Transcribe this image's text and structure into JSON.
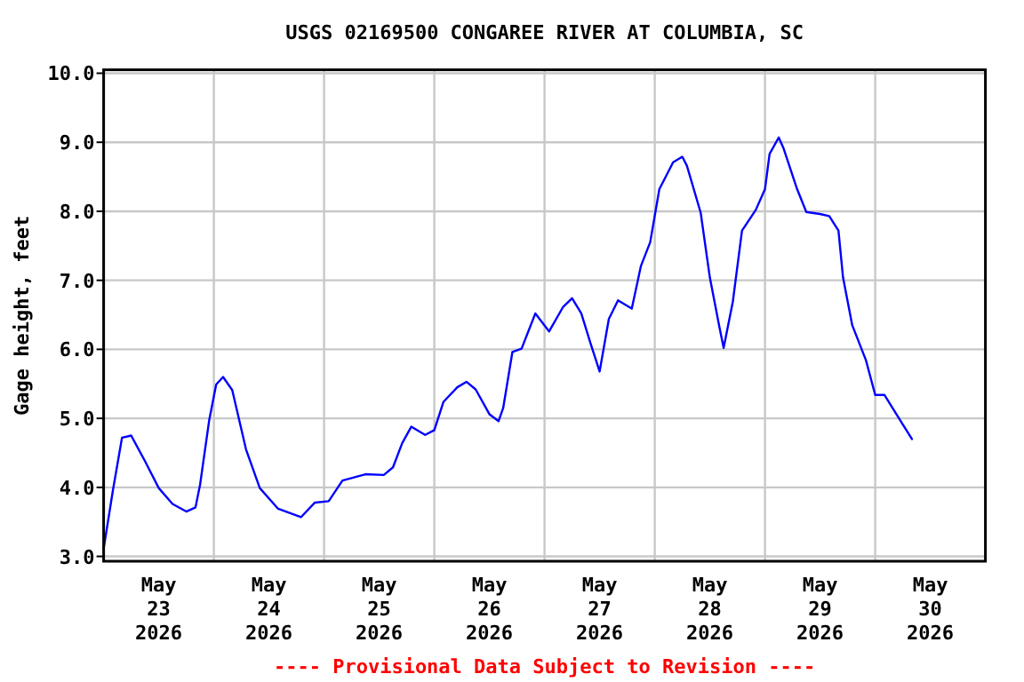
{
  "chart_data": {
    "type": "line",
    "title": "USGS 02169500 CONGAREE RIVER AT COLUMBIA, SC",
    "ylabel": "Gage height, feet",
    "annotations": [
      "---- Provisional Data Subject to Revision ----"
    ],
    "x": [
      "2026-05-23T00:00",
      "2026-05-23T02:00",
      "2026-05-23T04:00",
      "2026-05-23T06:00",
      "2026-05-23T09:00",
      "2026-05-23T12:00",
      "2026-05-23T15:00",
      "2026-05-23T18:00",
      "2026-05-23T20:00",
      "2026-05-23T21:00",
      "2026-05-23T23:00",
      "2026-05-24T00:30",
      "2026-05-24T02:00",
      "2026-05-24T04:00",
      "2026-05-24T07:00",
      "2026-05-24T10:00",
      "2026-05-24T14:00",
      "2026-05-24T19:00",
      "2026-05-24T22:00",
      "2026-05-25T01:00",
      "2026-05-25T04:00",
      "2026-05-25T09:00",
      "2026-05-25T13:00",
      "2026-05-25T15:00",
      "2026-05-25T17:00",
      "2026-05-25T19:00",
      "2026-05-25T22:00",
      "2026-05-26T00:00",
      "2026-05-26T02:00",
      "2026-05-26T05:00",
      "2026-05-26T07:00",
      "2026-05-26T09:00",
      "2026-05-26T12:00",
      "2026-05-26T14:00",
      "2026-05-26T15:00",
      "2026-05-26T17:00",
      "2026-05-26T19:00",
      "2026-05-26T22:00",
      "2026-05-27T01:00",
      "2026-05-27T04:00",
      "2026-05-27T06:00",
      "2026-05-27T08:00",
      "2026-05-27T10:00",
      "2026-05-27T12:00",
      "2026-05-27T14:00",
      "2026-05-27T16:00",
      "2026-05-27T19:00",
      "2026-05-27T21:00",
      "2026-05-27T23:00",
      "2026-05-28T01:00",
      "2026-05-28T04:00",
      "2026-05-28T06:00",
      "2026-05-28T07:00",
      "2026-05-28T10:00",
      "2026-05-28T12:00",
      "2026-05-28T14:00",
      "2026-05-28T15:00",
      "2026-05-28T17:00",
      "2026-05-28T19:00",
      "2026-05-28T22:00",
      "2026-05-29T00:00",
      "2026-05-29T01:00",
      "2026-05-29T03:00",
      "2026-05-29T04:00",
      "2026-05-29T07:00",
      "2026-05-29T09:00",
      "2026-05-29T12:00",
      "2026-05-29T14:00",
      "2026-05-29T16:00",
      "2026-05-29T17:00",
      "2026-05-29T19:00",
      "2026-05-29T22:00",
      "2026-05-30T00:00",
      "2026-05-30T02:00",
      "2026-05-30T05:00",
      "2026-05-30T08:00"
    ],
    "series": [
      {
        "color": "#0000ff",
        "values": [
          3.11,
          3.95,
          4.72,
          4.75,
          4.38,
          3.99,
          3.76,
          3.65,
          3.71,
          4.04,
          4.98,
          5.49,
          5.6,
          5.41,
          4.55,
          3.99,
          3.69,
          3.57,
          3.78,
          3.8,
          4.1,
          4.19,
          4.18,
          4.29,
          4.64,
          4.88,
          4.76,
          4.83,
          5.24,
          5.45,
          5.53,
          5.42,
          5.06,
          4.96,
          5.15,
          5.96,
          6.01,
          6.52,
          6.26,
          6.61,
          6.74,
          6.52,
          6.09,
          5.68,
          6.44,
          6.71,
          6.59,
          7.21,
          7.55,
          8.32,
          8.71,
          8.79,
          8.66,
          7.98,
          7.04,
          6.35,
          6.02,
          6.69,
          7.72,
          8.02,
          8.32,
          8.83,
          9.07,
          8.92,
          8.32,
          7.99,
          7.96,
          7.93,
          7.72,
          7.04,
          6.35,
          5.84,
          5.34,
          5.34,
          5.02,
          4.7
        ]
      }
    ],
    "xlim": [
      "2026-05-23T00:00",
      "2026-05-31T00:00"
    ],
    "xticks": [
      {
        "value": "2026-05-23T00:00",
        "label": null
      },
      {
        "value": "2026-05-23T12:00",
        "label": "May\n23\n2026"
      },
      {
        "value": "2026-05-24T00:00",
        "label": null
      },
      {
        "value": "2026-05-24T12:00",
        "label": "May\n24\n2026"
      },
      {
        "value": "2026-05-25T00:00",
        "label": null
      },
      {
        "value": "2026-05-25T12:00",
        "label": "May\n25\n2026"
      },
      {
        "value": "2026-05-26T00:00",
        "label": null
      },
      {
        "value": "2026-05-26T12:00",
        "label": "May\n26\n2026"
      },
      {
        "value": "2026-05-27T00:00",
        "label": null
      },
      {
        "value": "2026-05-27T12:00",
        "label": "May\n27\n2026"
      },
      {
        "value": "2026-05-28T00:00",
        "label": null
      },
      {
        "value": "2026-05-28T12:00",
        "label": "May\n28\n2026"
      },
      {
        "value": "2026-05-29T00:00",
        "label": null
      },
      {
        "value": "2026-05-29T12:00",
        "label": "May\n29\n2026"
      },
      {
        "value": "2026-05-30T00:00",
        "label": null
      },
      {
        "value": "2026-05-30T12:00",
        "label": "May\n30\n2026"
      },
      {
        "value": "2026-05-31T00:00",
        "label": null
      }
    ],
    "ylim": [
      2.93,
      10.05
    ],
    "yticks": [
      {
        "value": 3,
        "label": "3.0"
      },
      {
        "value": 4,
        "label": "4.0"
      },
      {
        "value": 5,
        "label": "5.0"
      },
      {
        "value": 6,
        "label": "6.0"
      },
      {
        "value": 7,
        "label": "7.0"
      },
      {
        "value": 8,
        "label": "8.0"
      },
      {
        "value": 9,
        "label": "9.0"
      },
      {
        "value": 10,
        "label": "10.0"
      }
    ],
    "grid": true,
    "marker": "none",
    "line_style": "solid"
  }
}
